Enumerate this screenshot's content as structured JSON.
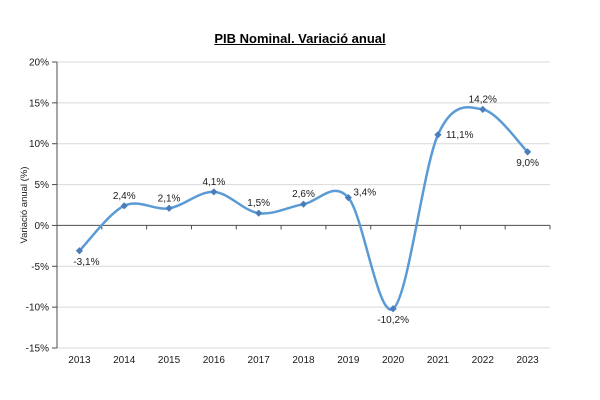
{
  "chart_data": {
    "type": "line",
    "title": "PIB Nominal. Variació anual",
    "xlabel": "",
    "ylabel": "Variació anual (%)",
    "categories": [
      "2013",
      "2014",
      "2015",
      "2016",
      "2017",
      "2018",
      "2019",
      "2020",
      "2021",
      "2022",
      "2023"
    ],
    "series": [
      {
        "name": "PIB Nominal",
        "values": [
          -3.1,
          2.4,
          2.1,
          4.1,
          1.5,
          2.6,
          3.4,
          -10.2,
          11.1,
          14.2,
          9.0
        ],
        "data_labels": [
          "-3,1%",
          "2,4%",
          "2,1%",
          "4,1%",
          "1,5%",
          "2,6%",
          "3,4%",
          "-10,2%",
          "11,1%",
          "14,2%",
          "9,0%"
        ],
        "label_positions": [
          "below-right",
          "above",
          "above",
          "above",
          "above",
          "above",
          "right-up",
          "below",
          "right",
          "above",
          "below"
        ]
      }
    ],
    "ylim": [
      -15,
      20
    ],
    "ytick_step": 5,
    "ytick_labels": [
      "20%",
      "15%",
      "10%",
      "5%",
      "0%",
      "-5%",
      "-10%",
      "-15%"
    ],
    "grid": "horizontal",
    "legend": "none",
    "line_smooth": true,
    "markers": "diamond",
    "colors": {
      "line": "#5B9BD5",
      "marker": "#4A7EBB",
      "grid": "#D9D9D9",
      "axis": "#4D4D4D",
      "text": "#1A1A1A"
    }
  }
}
